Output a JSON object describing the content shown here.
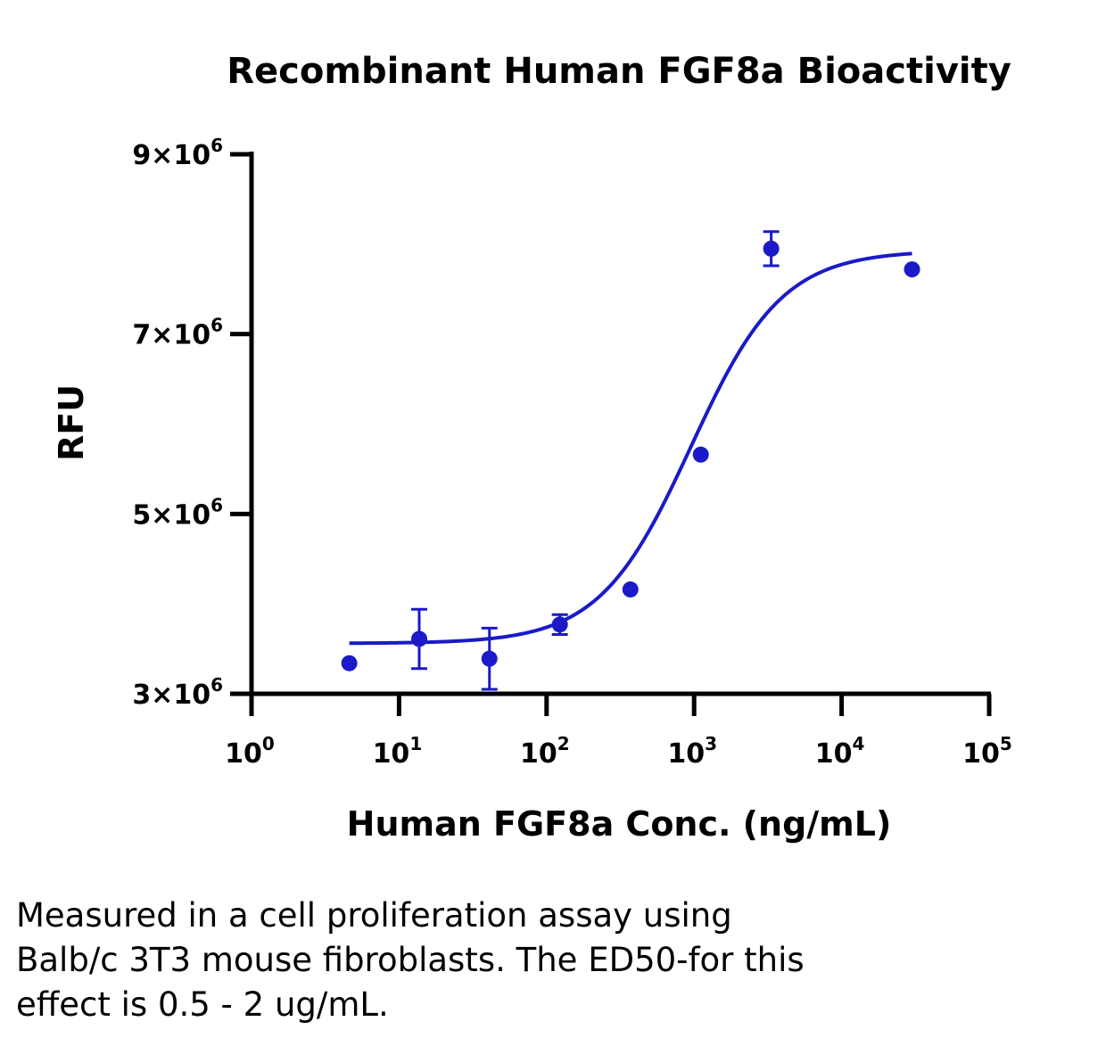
{
  "chart_data": {
    "type": "scatter",
    "title": "Recombinant Human FGF8a Bioactivity",
    "xlabel": "Human FGF8a Conc. (ng/mL)",
    "ylabel": "RFU",
    "x_scale": "log",
    "xlim": [
      1,
      100000
    ],
    "ylim": [
      3000000,
      9000000
    ],
    "x_ticks": [
      {
        "base": "10",
        "exp": "0"
      },
      {
        "base": "10",
        "exp": "1"
      },
      {
        "base": "10",
        "exp": "2"
      },
      {
        "base": "10",
        "exp": "3"
      },
      {
        "base": "10",
        "exp": "4"
      },
      {
        "base": "10",
        "exp": "5"
      }
    ],
    "y_ticks": [
      {
        "coef": "3×10",
        "exp": "6",
        "value": 3000000
      },
      {
        "coef": "5×10",
        "exp": "6",
        "value": 5000000
      },
      {
        "coef": "7×10",
        "exp": "6",
        "value": 7000000
      },
      {
        "coef": "9×10",
        "exp": "6",
        "value": 9000000
      }
    ],
    "grid": false,
    "legend": "none",
    "color": "#1a1ac8",
    "points": [
      {
        "x": 4.6,
        "y": 3340000,
        "err": 0
      },
      {
        "x": 13.7,
        "y": 3610000,
        "err": 330000
      },
      {
        "x": 41,
        "y": 3390000,
        "err": 340000
      },
      {
        "x": 123,
        "y": 3770000,
        "err": 110000
      },
      {
        "x": 370,
        "y": 4160000,
        "err": 0
      },
      {
        "x": 1110,
        "y": 5660000,
        "err": 0
      },
      {
        "x": 3330,
        "y": 7950000,
        "err": 190000
      },
      {
        "x": 30000,
        "y": 7720000,
        "err": 0
      }
    ],
    "fit": {
      "model": "four-parameter logistic",
      "bottom": 3560000,
      "top": 7930000,
      "ec50": 950,
      "hill": 1.4,
      "x_range": [
        4.6,
        30000
      ]
    }
  },
  "caption": {
    "line1": "Measured in a cell proliferation assay using",
    "line2": "Balb/c 3T3 mouse fibroblasts. The ED50-for this",
    "line3": "effect is 0.5 - 2 ug/mL."
  }
}
